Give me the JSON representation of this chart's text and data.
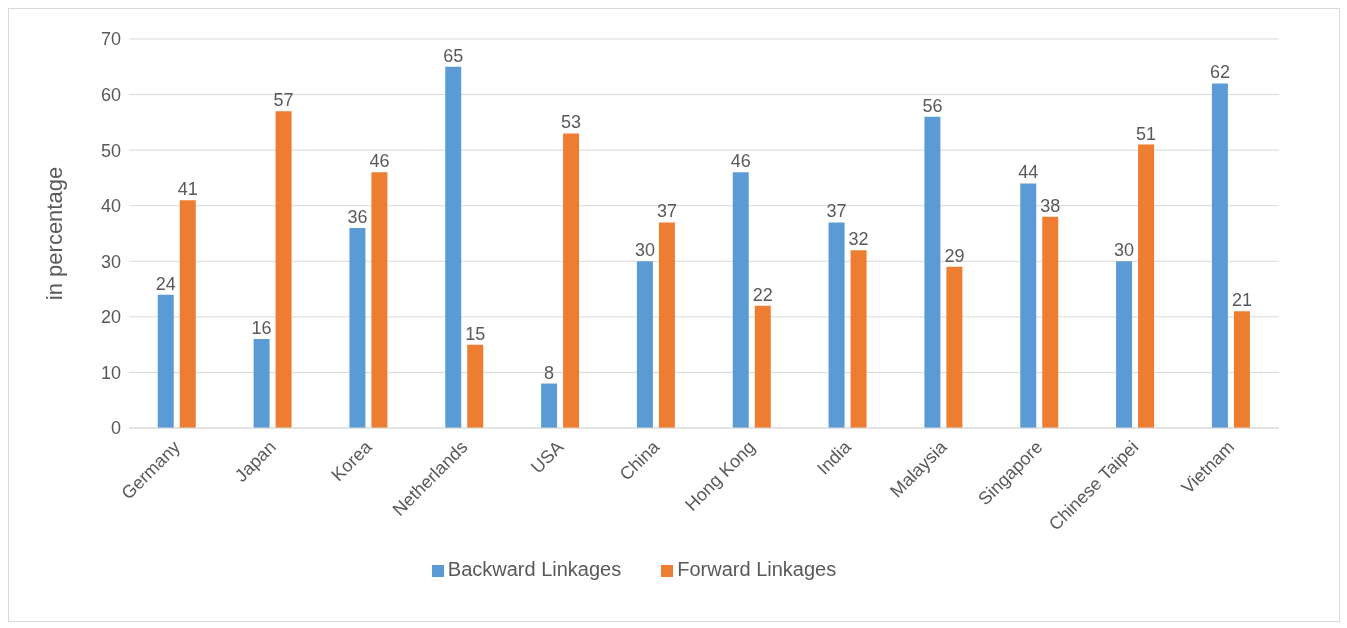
{
  "chart_data": {
    "type": "bar",
    "ylabel": "in percentage",
    "categories": [
      "Germany",
      "Japan",
      "Korea",
      "Netherlands",
      "USA",
      "China",
      "Hong Kong",
      "India",
      "Malaysia",
      "Singapore",
      "Chinese Taipei",
      "Vietnam"
    ],
    "series": [
      {
        "name": "Backward Linkages",
        "color": "#5b9bd5",
        "values": [
          24,
          16,
          36,
          65,
          8,
          30,
          46,
          37,
          56,
          44,
          30,
          62
        ]
      },
      {
        "name": "Forward Linkages",
        "color": "#ed7d31",
        "values": [
          41,
          57,
          46,
          15,
          53,
          37,
          22,
          32,
          29,
          38,
          51,
          21
        ]
      }
    ],
    "ylim": [
      0,
      70
    ],
    "yticks": [
      0,
      10,
      20,
      30,
      40,
      50,
      60,
      70
    ],
    "grid": "y",
    "legend": "bottom",
    "data_labels": true
  }
}
